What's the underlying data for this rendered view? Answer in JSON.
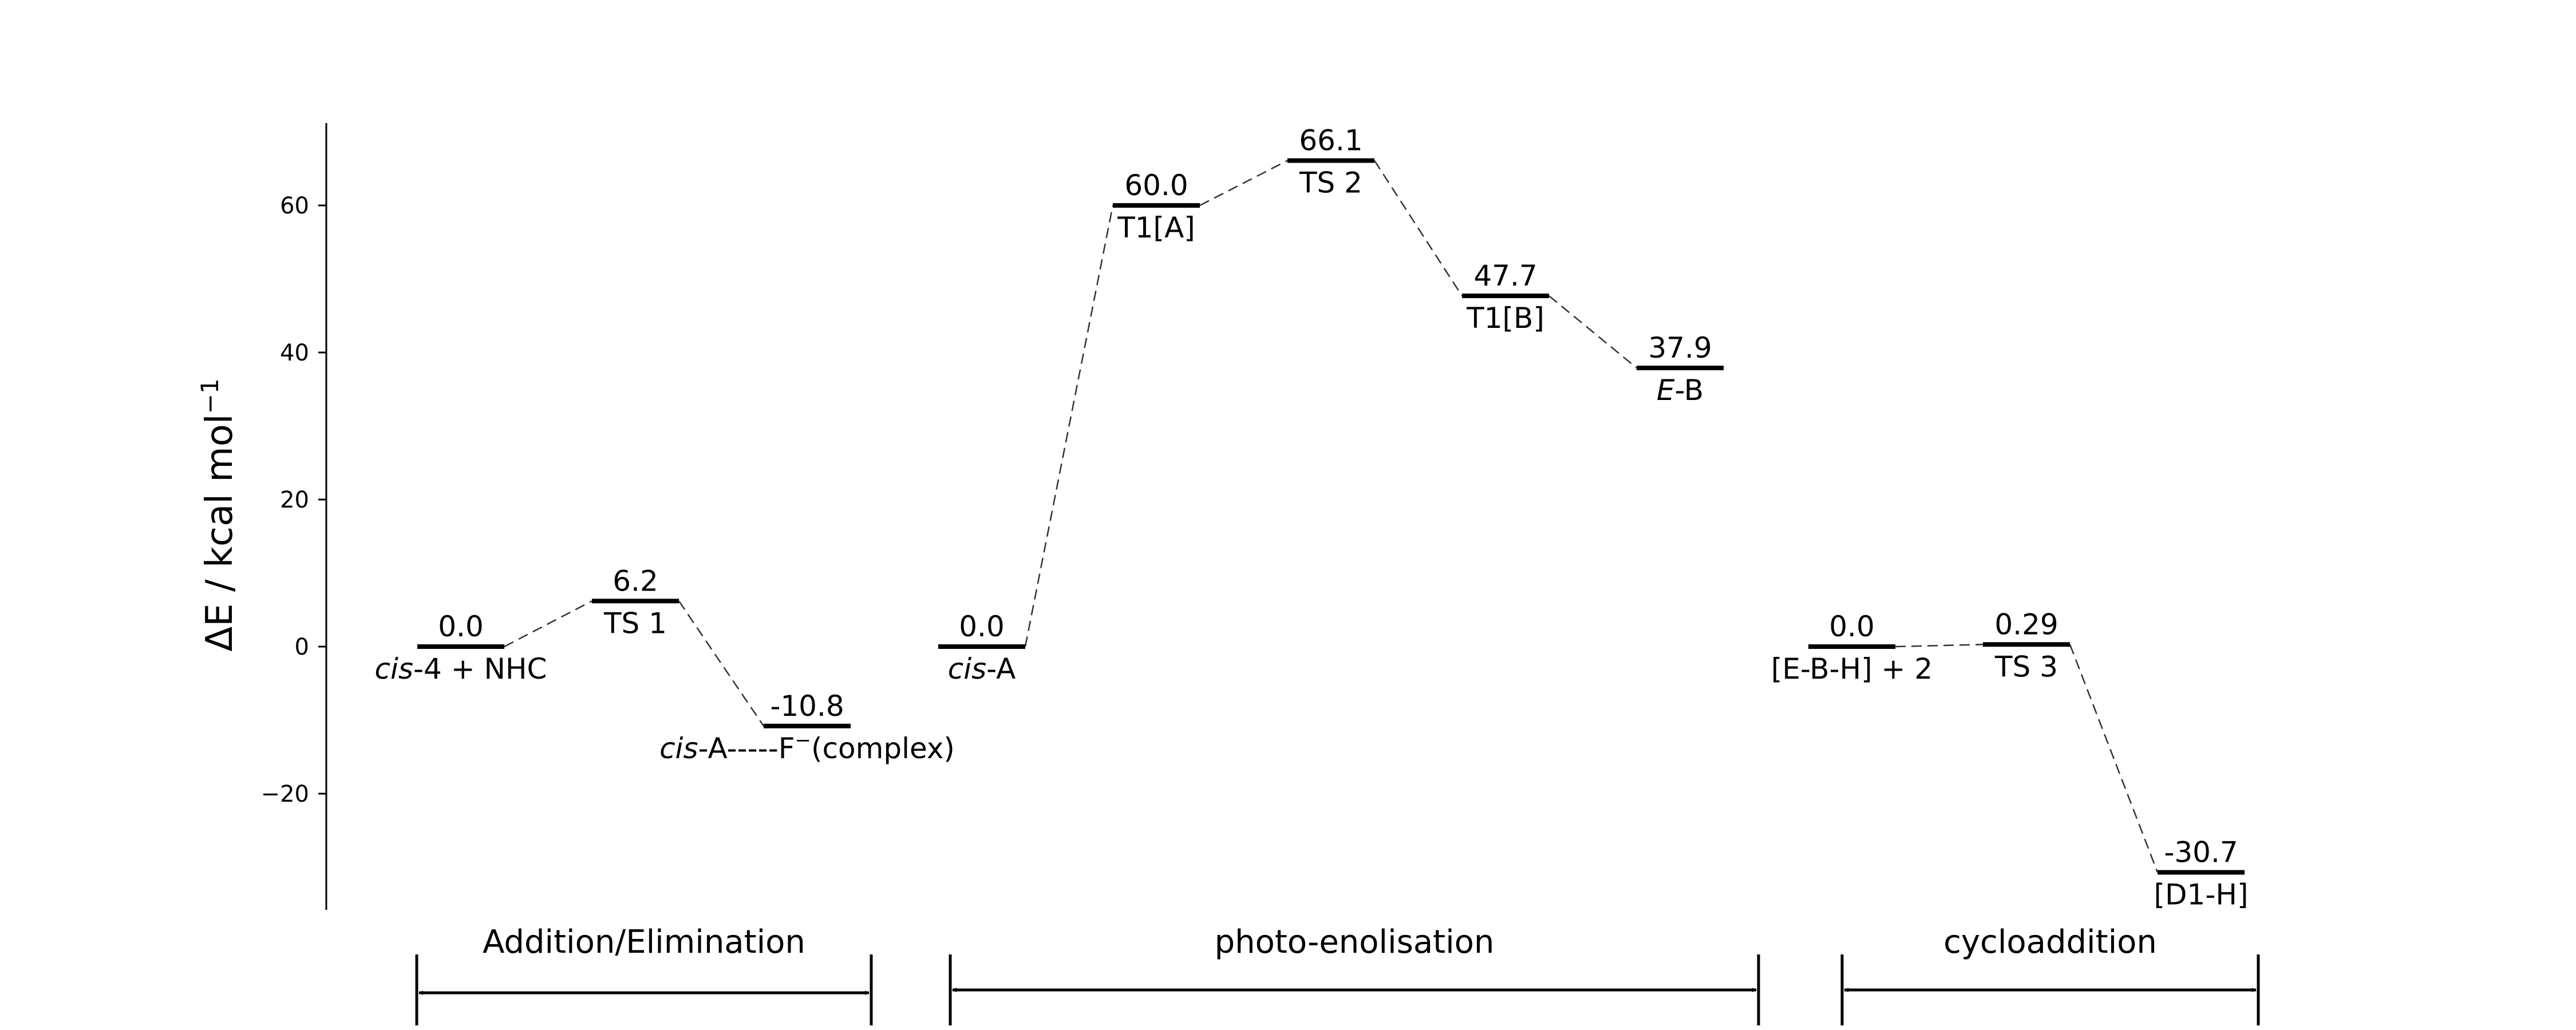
{
  "axis": {
    "ylabel_base": "ΔE / kcal mol",
    "ylabel_exp": "−1",
    "ymin": -36,
    "ymax": 71,
    "ticks": [
      {
        "value": -20,
        "label": "−20"
      },
      {
        "value": 0,
        "label": "0"
      },
      {
        "value": 20,
        "label": "20"
      },
      {
        "value": 40,
        "label": "40"
      },
      {
        "value": 60,
        "label": "60"
      }
    ]
  },
  "chart_data": {
    "type": "energy-diagram",
    "ylabel": "ΔE / kcal mol−1",
    "ylim": [
      -36,
      71
    ],
    "stages": [
      {
        "label": "Addition/Elimination",
        "states": [
          {
            "energy": 0.0,
            "energy_label": "0.0",
            "label": "cis-4 + NHC"
          },
          {
            "energy": 6.2,
            "energy_label": "6.2",
            "label": "TS 1"
          },
          {
            "energy": -10.8,
            "energy_label": "-10.8",
            "label": "cis-A-----F−(complex)"
          }
        ]
      },
      {
        "label": "photo-enolisation",
        "states": [
          {
            "energy": 0.0,
            "energy_label": "0.0",
            "label": "cis-A"
          },
          {
            "energy": 60.0,
            "energy_label": "60.0",
            "label": "T1[A]"
          },
          {
            "energy": 66.1,
            "energy_label": "66.1",
            "label": "TS 2"
          },
          {
            "energy": 47.7,
            "energy_label": "47.7",
            "label": "T1[B]"
          },
          {
            "energy": 37.9,
            "energy_label": "37.9",
            "label": "E-B"
          }
        ]
      },
      {
        "label": "cycloaddition",
        "states": [
          {
            "energy": 0.0,
            "energy_label": "0.0",
            "label": "[E-B-H] + 2"
          },
          {
            "energy": 0.29,
            "energy_label": "0.29",
            "label": "TS 3"
          },
          {
            "energy": -30.7,
            "energy_label": "-30.7",
            "label": "[D1-H]"
          }
        ]
      }
    ]
  },
  "levels": [
    {
      "id": "cis4",
      "energy": 0.0,
      "energy_label": "0.0",
      "label_parts": [
        {
          "t": "cis",
          "i": true
        },
        {
          "t": "-4 + NHC"
        }
      ]
    },
    {
      "id": "ts1",
      "energy": 6.2,
      "energy_label": "6.2",
      "label_parts": [
        {
          "t": "TS 1"
        }
      ]
    },
    {
      "id": "complex",
      "energy": -10.8,
      "energy_label": "-10.8",
      "label_parts": [
        {
          "t": "cis",
          "i": true
        },
        {
          "t": "-A-----F"
        },
        {
          "t": "−",
          "sup": true
        },
        {
          "t": "(complex)"
        }
      ]
    },
    {
      "id": "cisA",
      "energy": 0.0,
      "energy_label": "0.0",
      "label_parts": [
        {
          "t": "cis",
          "i": true
        },
        {
          "t": "-A"
        }
      ]
    },
    {
      "id": "t1a",
      "energy": 60.0,
      "energy_label": "60.0",
      "label_parts": [
        {
          "t": "T1[A]"
        }
      ]
    },
    {
      "id": "ts2",
      "energy": 66.1,
      "energy_label": "66.1",
      "label_parts": [
        {
          "t": "TS 2"
        }
      ]
    },
    {
      "id": "t1b",
      "energy": 47.7,
      "energy_label": "47.7",
      "label_parts": [
        {
          "t": "T1[B]"
        }
      ]
    },
    {
      "id": "eb",
      "energy": 37.9,
      "energy_label": "37.9",
      "label_parts": [
        {
          "t": "E",
          "i": true
        },
        {
          "t": "-B"
        }
      ]
    },
    {
      "id": "ebh",
      "energy": 0.0,
      "energy_label": "0.0",
      "label_parts": [
        {
          "t": "[E-B-H] + 2"
        }
      ]
    },
    {
      "id": "ts3",
      "energy": 0.29,
      "energy_label": "0.29",
      "label_parts": [
        {
          "t": "TS 3"
        }
      ]
    },
    {
      "id": "d1h",
      "energy": -30.7,
      "energy_label": "-30.7",
      "label_parts": [
        {
          "t": "[D1-H]"
        }
      ]
    }
  ],
  "connectors": [
    [
      "cis4",
      "ts1"
    ],
    [
      "ts1",
      "complex"
    ],
    [
      "cisA",
      "t1a"
    ],
    [
      "t1a",
      "ts2"
    ],
    [
      "ts2",
      "t1b"
    ],
    [
      "t1b",
      "eb"
    ],
    [
      "ebh",
      "ts3"
    ],
    [
      "ts3",
      "d1h"
    ]
  ],
  "stages": [
    {
      "id": "addition-elimination",
      "label": "Addition/Elimination"
    },
    {
      "id": "photo-enolisation",
      "label": "photo-enolisation"
    },
    {
      "id": "cycloaddition",
      "label": "cycloaddition"
    }
  ]
}
